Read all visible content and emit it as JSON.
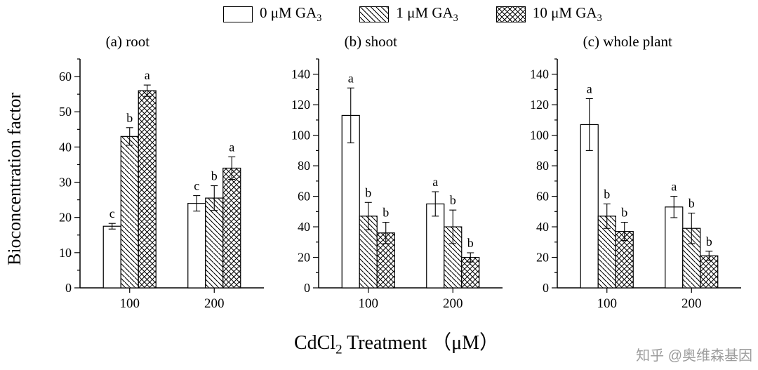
{
  "ylabel": "Bioconcentration factor",
  "xlabel": {
    "pre": "CdCl",
    "sub": "2",
    "post": " Treatment （μM）"
  },
  "watermark": "知乎 @奥维森基因",
  "colors": {
    "axis": "#000000",
    "bar_fill": "#ffffff",
    "bar_stroke": "#000000",
    "watermark_gray": "#9c9c9c"
  },
  "legend": {
    "position": "top-center",
    "items": [
      {
        "pre": "0 μM GA",
        "sub": "3",
        "pattern": "none"
      },
      {
        "pre": "1 μM GA",
        "sub": "3",
        "pattern": "diagonal"
      },
      {
        "pre": "10 μM GA",
        "sub": "3",
        "pattern": "crosshatch"
      }
    ]
  },
  "chart_data": [
    {
      "type": "bar",
      "title": "(a) root",
      "categories": [
        "100",
        "200"
      ],
      "ylim": [
        0,
        65
      ],
      "yticks": [
        0,
        10,
        20,
        30,
        40,
        50,
        60
      ],
      "ytick_major": 10,
      "ytick_minor": 5,
      "grid": false,
      "series": [
        {
          "name": "0 μM GA3",
          "pattern": "none",
          "values": [
            17.5,
            24
          ],
          "errors": [
            0.8,
            2.2
          ],
          "letters": [
            "c",
            "c"
          ]
        },
        {
          "name": "1 μM GA3",
          "pattern": "diagonal",
          "values": [
            43,
            25.5
          ],
          "errors": [
            2.5,
            3.5
          ],
          "letters": [
            "b",
            "b"
          ]
        },
        {
          "name": "10 μM GA3",
          "pattern": "crosshatch",
          "values": [
            56,
            34
          ],
          "errors": [
            1.6,
            3.2
          ],
          "letters": [
            "a",
            "a"
          ]
        }
      ]
    },
    {
      "type": "bar",
      "title": "(b) shoot",
      "categories": [
        "100",
        "200"
      ],
      "ylim": [
        0,
        150
      ],
      "yticks": [
        0,
        20,
        40,
        60,
        80,
        100,
        120,
        140
      ],
      "ytick_major": 20,
      "ytick_minor": 10,
      "grid": false,
      "series": [
        {
          "name": "0 μM GA3",
          "pattern": "none",
          "values": [
            113,
            55
          ],
          "errors": [
            18,
            8
          ],
          "letters": [
            "a",
            "a"
          ]
        },
        {
          "name": "1 μM GA3",
          "pattern": "diagonal",
          "values": [
            47,
            40
          ],
          "errors": [
            9,
            11
          ],
          "letters": [
            "b",
            "b"
          ]
        },
        {
          "name": "10 μM GA3",
          "pattern": "crosshatch",
          "values": [
            36,
            20
          ],
          "errors": [
            7,
            3
          ],
          "letters": [
            "b",
            "b"
          ]
        }
      ]
    },
    {
      "type": "bar",
      "title": "(c) whole plant",
      "categories": [
        "100",
        "200"
      ],
      "ylim": [
        0,
        150
      ],
      "yticks": [
        0,
        20,
        40,
        60,
        80,
        100,
        120,
        140
      ],
      "ytick_major": 20,
      "ytick_minor": 10,
      "grid": false,
      "series": [
        {
          "name": "0 μM GA3",
          "pattern": "none",
          "values": [
            107,
            53
          ],
          "errors": [
            17,
            7
          ],
          "letters": [
            "a",
            "a"
          ]
        },
        {
          "name": "1 μM GA3",
          "pattern": "diagonal",
          "values": [
            47,
            39
          ],
          "errors": [
            8,
            10
          ],
          "letters": [
            "b",
            "b"
          ]
        },
        {
          "name": "10 μM GA3",
          "pattern": "crosshatch",
          "values": [
            37,
            21
          ],
          "errors": [
            6,
            3
          ],
          "letters": [
            "b",
            "b"
          ]
        }
      ]
    }
  ]
}
